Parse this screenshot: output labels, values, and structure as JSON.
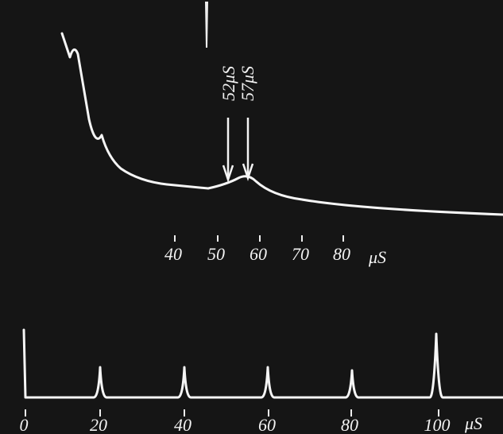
{
  "annotations": {
    "peak_1": "52μS",
    "peak_2": "57μS"
  },
  "upper_scale": {
    "labels": [
      "40",
      "50",
      "60",
      "70",
      "80"
    ],
    "unit": "μS"
  },
  "lower_scale": {
    "labels": [
      "0",
      "20",
      "40",
      "60",
      "80",
      "100"
    ],
    "unit": "μS"
  }
}
